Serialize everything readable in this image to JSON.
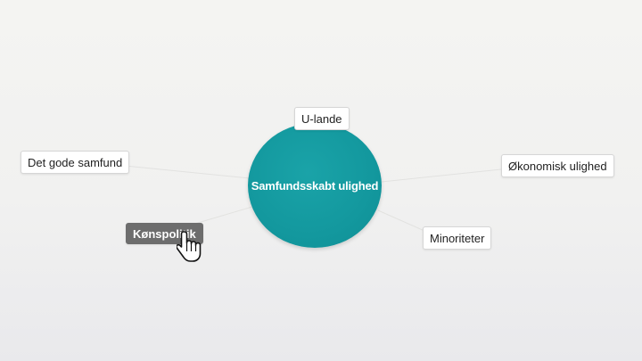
{
  "mindmap": {
    "center": {
      "label": "Samfundsskabt ulighed",
      "color": "#13989e"
    },
    "nodes": {
      "u_lande": {
        "label": "U-lande"
      },
      "det_gode_samfund": {
        "label": "Det gode samfund"
      },
      "okonomisk_ulighed": {
        "label": "Økonomisk ulighed"
      },
      "konspolitik": {
        "label": "Kønspolitik",
        "selected": true
      },
      "minoriteter": {
        "label": "Minoriteter"
      }
    },
    "line_color": "#e2e2e0",
    "selected_color": "#6d6d6d"
  },
  "cursor": {
    "type": "hand-pointer-icon"
  }
}
